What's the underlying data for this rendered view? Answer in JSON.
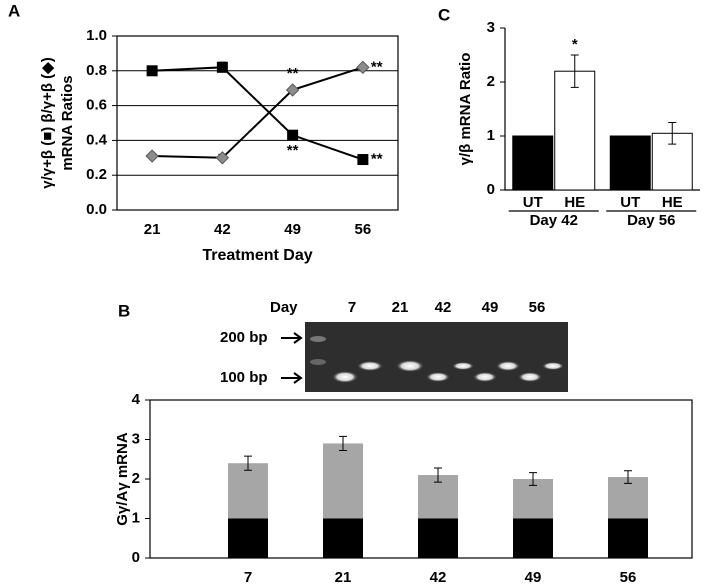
{
  "chart_data": [
    {
      "type": "line",
      "panel": "A",
      "categories": [
        "21",
        "42",
        "49",
        "56"
      ],
      "xlabel": "Treatment Day",
      "ylabel": [
        "γ/γ+β (■)  β/γ+β (◆)",
        "mRNA Ratios"
      ],
      "ylim": [
        0,
        1
      ],
      "yticks": [
        {
          "value": 0,
          "label": "0.0"
        },
        0.2,
        0.4,
        0.6,
        0.8,
        {
          "value": 1,
          "label": "1.0"
        }
      ],
      "grid": true,
      "series": [
        {
          "marker": "square",
          "color": "#000000",
          "values": [
            0.8,
            0.82,
            0.43,
            0.29
          ],
          "errors": [
            0.02,
            0.03,
            null,
            null
          ],
          "annotations": [
            null,
            null,
            "**",
            "**"
          ]
        },
        {
          "marker": "diamond",
          "color": "#8c8c8c",
          "values": [
            0.31,
            0.3,
            0.69,
            0.82
          ],
          "errors": [
            null,
            0.02,
            null,
            null
          ],
          "annotations": [
            null,
            null,
            "**",
            "**"
          ]
        }
      ]
    },
    {
      "type": "bar",
      "panel": "C",
      "categories": [
        "Day 42",
        "Day 56"
      ],
      "ylabel": "γ/β mRNA Ratio",
      "ylim": [
        0,
        3
      ],
      "yticks": [
        0,
        1,
        2,
        3
      ],
      "series": [
        {
          "name": "UT",
          "color": "#000000",
          "values": [
            1,
            1
          ]
        },
        {
          "name": "HE",
          "color": "#ffffff",
          "values": [
            2.2,
            1.05
          ],
          "errors": [
            0.3,
            0.2
          ],
          "annotations": [
            "*",
            null
          ]
        }
      ]
    },
    {
      "type": "stacked_bar",
      "panel": "B",
      "categories": [
        "7",
        "21",
        "42",
        "49",
        "56"
      ],
      "ylabel": "Gγ/Aγ mRNA",
      "ylim": [
        0,
        4
      ],
      "yticks": [
        0,
        1,
        2,
        3,
        4
      ],
      "series": [
        {
          "color": "#000000",
          "values": [
            1,
            1,
            1,
            1,
            1
          ]
        },
        {
          "color": "#a6a6a6",
          "values": [
            1.4,
            1.9,
            1.1,
            1.0,
            1.05
          ],
          "errors": [
            0.18,
            0.18,
            0.18,
            0.16,
            0.16
          ]
        }
      ]
    }
  ],
  "gel": {
    "header": "Day",
    "lanes": [
      "7",
      "21",
      "42",
      "49",
      "56"
    ],
    "markers": [
      "200 bp",
      "100 bp"
    ]
  }
}
